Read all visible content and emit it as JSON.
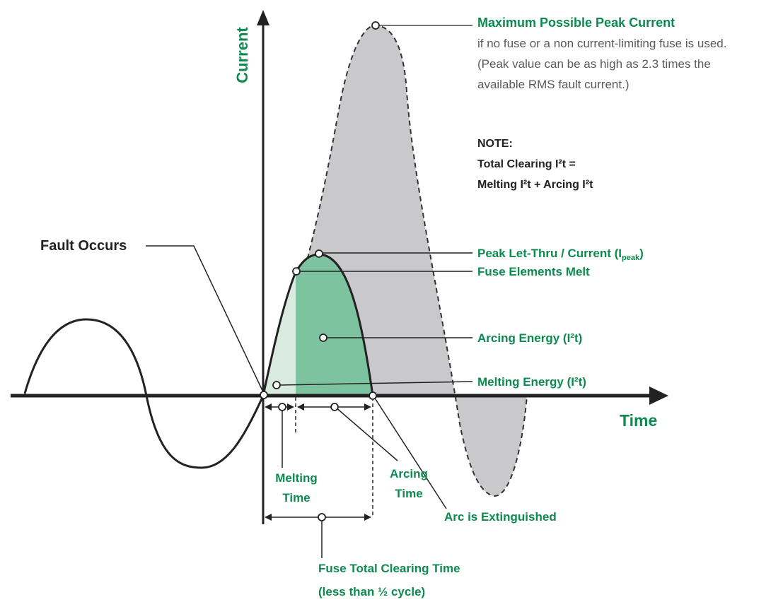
{
  "axes": {
    "y_label": "Current",
    "x_label": "Time"
  },
  "annotations": {
    "max_peak_title": "Maximum Possible Peak Current",
    "max_peak_line1": "if no fuse or a non current-limiting fuse is used.",
    "max_peak_line2": "(Peak value can be as high as 2.3 times the",
    "max_peak_line3": "available RMS fault current.)",
    "note_title": "NOTE:",
    "note_line1": "Total Clearing I²t =",
    "note_line2": "Melting I²t + Arcing I²t",
    "fault_occurs": "Fault Occurs",
    "peak_let_thru_main": "Peak Let-Thru / Current (I",
    "peak_let_thru_sub": "peak",
    "peak_let_thru_end": ")",
    "fuse_elements_melt": "Fuse Elements Melt",
    "arcing_energy": "Arcing Energy (I²t)",
    "melting_energy": "Melting Energy (I²t)",
    "melting_time_1": "Melting",
    "melting_time_2": "Time",
    "arcing_time_1": "Arcing",
    "arcing_time_2": "Time",
    "arc_extinguished": "Arc is Extinguished",
    "total_clearing_1": "Fuse Total Clearing Time",
    "total_clearing_2": "(less than ½ cycle)"
  },
  "colors": {
    "green_text": "#0c8a4f",
    "dark_text": "#222222",
    "grey_text": "#5a5a5a",
    "available_current_fill": "#c9c9cb",
    "melting_fill": "#d9ebe1",
    "arcing_fill": "#7dc3a0"
  }
}
